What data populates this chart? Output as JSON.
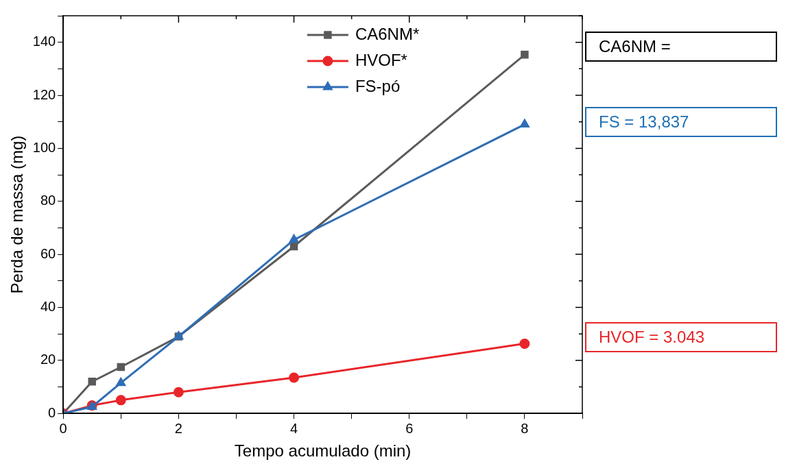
{
  "chart_data": {
    "type": "line",
    "xlabel": "Tempo acumulado (min)",
    "ylabel": "Perda de massa (mg)",
    "x": [
      0,
      0.5,
      1,
      2,
      4,
      8
    ],
    "series": [
      {
        "name": "CA6NM*",
        "color": "#5a5a5a",
        "marker": "square",
        "values": [
          0,
          12,
          17.5,
          29,
          63,
          135.3
        ]
      },
      {
        "name": "HVOF*",
        "color": "#e8262a",
        "marker": "circle",
        "values": [
          0,
          3,
          5,
          8,
          13.5,
          26.3
        ]
      },
      {
        "name": "FS-pó",
        "color": "#2f6db5",
        "marker": "triangle",
        "values": [
          0,
          2.5,
          11.5,
          29,
          65.5,
          109
        ]
      }
    ],
    "xlim": [
      0,
      9
    ],
    "ylim": [
      0,
      150
    ],
    "xticks": [
      0,
      {
        "value": 1,
        "label": null
      },
      2,
      {
        "value": 3,
        "label": null
      },
      4,
      {
        "value": 5,
        "label": null
      },
      6,
      {
        "value": 7,
        "label": null
      },
      8,
      {
        "value": 9,
        "label": null
      }
    ],
    "yticks": [
      0,
      {
        "value": 10,
        "label": null
      },
      20,
      {
        "value": 30,
        "label": null
      },
      40,
      {
        "value": 50,
        "label": null
      },
      60,
      {
        "value": 70,
        "label": null
      },
      80,
      {
        "value": 90,
        "label": null
      },
      100,
      {
        "value": 110,
        "label": null
      },
      120,
      {
        "value": 130,
        "label": null
      },
      140,
      {
        "value": 150,
        "label": null
      }
    ],
    "grid": false,
    "legend": "top",
    "line_style": "solid",
    "annotations": [
      "CA6NM =",
      "FS = 13,837",
      "HVOF = 3.043"
    ]
  }
}
